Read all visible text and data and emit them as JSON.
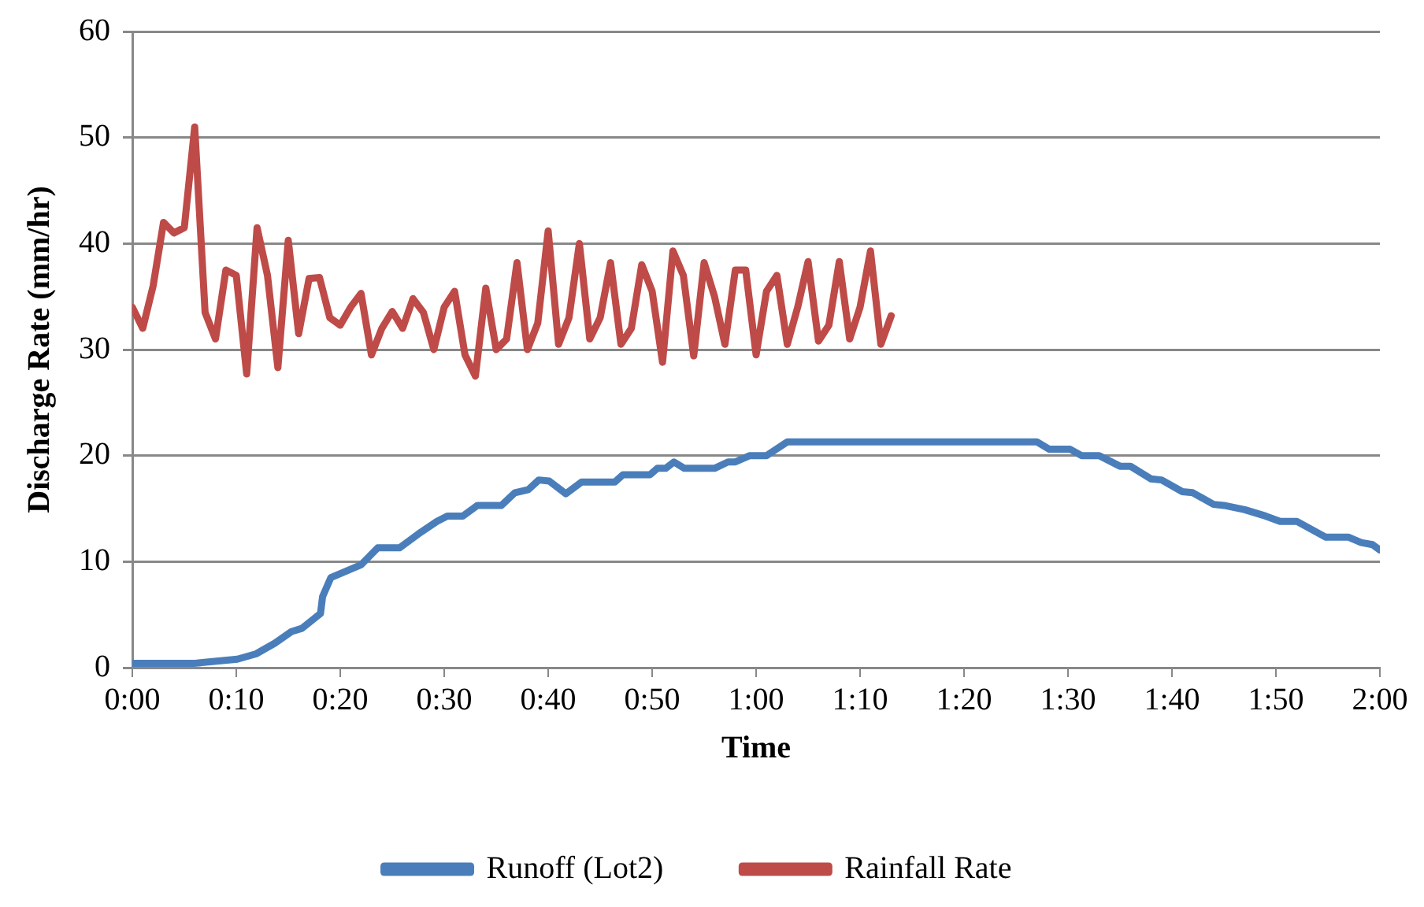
{
  "chart_data": {
    "type": "line",
    "xlabel": "Time",
    "ylabel": "Discharge Rate (mm/hr)",
    "xlim": [
      0,
      120
    ],
    "xticks": [
      {
        "value": 0,
        "label": "0:00"
      },
      {
        "value": 10,
        "label": "0:10"
      },
      {
        "value": 20,
        "label": "0:20"
      },
      {
        "value": 30,
        "label": "0:30"
      },
      {
        "value": 40,
        "label": "0:40"
      },
      {
        "value": 50,
        "label": "0:50"
      },
      {
        "value": 60,
        "label": "1:00"
      },
      {
        "value": 70,
        "label": "1:10"
      },
      {
        "value": 80,
        "label": "1:20"
      },
      {
        "value": 90,
        "label": "1:30"
      },
      {
        "value": 100,
        "label": "1:40"
      },
      {
        "value": 110,
        "label": "1:50"
      },
      {
        "value": 120,
        "label": "2:00"
      }
    ],
    "ylim": [
      0,
      60
    ],
    "yticks": [
      0,
      10,
      20,
      30,
      40,
      50,
      60
    ],
    "grid": "y",
    "legend": "bottom",
    "marker": "none",
    "line_style": "solid",
    "series": [
      {
        "name": "Runoff (Lot2)",
        "color": "#4a7ebb",
        "x": [
          0,
          5.9,
          10.1,
          11.9,
          13.7,
          15.3,
          16.3,
          18.1,
          18.3,
          19.1,
          22,
          23.6,
          25.7,
          27.5,
          29.3,
          30.3,
          31.8,
          33.2,
          35.5,
          36.8,
          38.1,
          39.1,
          40.1,
          41.7,
          43.2,
          46.4,
          47.2,
          49.8,
          50.5,
          51.3,
          52.1,
          53.1,
          56,
          57.3,
          58,
          59.4,
          61,
          63,
          87,
          88.2,
          90.2,
          91.3,
          93,
          95,
          96,
          98,
          99,
          101,
          102,
          104,
          105,
          107,
          108,
          109,
          110.4,
          112,
          114.8,
          117,
          118.2,
          119.3,
          120
        ],
        "values": [
          0.4,
          0.4,
          0.8,
          1.3,
          2.3,
          3.4,
          3.7,
          5.1,
          6.7,
          8.5,
          9.7,
          11.3,
          11.3,
          12.6,
          13.8,
          14.3,
          14.3,
          15.3,
          15.3,
          16.5,
          16.8,
          17.7,
          17.6,
          16.4,
          17.5,
          17.5,
          18.2,
          18.2,
          18.8,
          18.8,
          19.4,
          18.8,
          18.8,
          19.4,
          19.4,
          20,
          20,
          21.3,
          21.3,
          20.6,
          20.6,
          20,
          20,
          19,
          19,
          17.8,
          17.7,
          16.6,
          16.5,
          15.4,
          15.3,
          14.9,
          14.6,
          14.3,
          13.8,
          13.8,
          12.3,
          12.3,
          11.8,
          11.6,
          11.1
        ]
      },
      {
        "name": "Rainfall Rate",
        "color": "#be4b48",
        "x": [
          0,
          1,
          2,
          3,
          4,
          5,
          6,
          7,
          8,
          9,
          10,
          11,
          12,
          13,
          14,
          15,
          16,
          17,
          18,
          19,
          20,
          21,
          22,
          23,
          24,
          25,
          26,
          27,
          28,
          29,
          30,
          31,
          32,
          33,
          34,
          35,
          36,
          37,
          38,
          39,
          40,
          41,
          42,
          43,
          44,
          45,
          46,
          47,
          48,
          49,
          50,
          51,
          52,
          53,
          54,
          55,
          56,
          57,
          58,
          59,
          60,
          61,
          62,
          63,
          64,
          65,
          66,
          67,
          68,
          69,
          70,
          71,
          72,
          73
        ],
        "values": [
          34,
          32,
          36,
          42,
          41,
          41.5,
          51,
          33.5,
          31,
          37.5,
          37,
          27.7,
          41.5,
          37,
          28.3,
          40.3,
          31.5,
          36.7,
          36.8,
          33,
          32.3,
          34,
          35.3,
          29.5,
          32,
          33.6,
          32,
          34.8,
          33.5,
          30,
          34,
          35.5,
          29.5,
          27.5,
          35.8,
          30,
          31,
          38.2,
          30,
          32.5,
          41.2,
          30.5,
          33,
          40,
          31,
          33,
          38.2,
          30.5,
          32,
          38,
          35.5,
          28.8,
          39.3,
          37,
          29.4,
          38.2,
          35,
          30.5,
          37.5,
          37.5,
          29.5,
          35.5,
          37,
          30.5,
          34,
          38.3,
          30.8,
          32.3,
          38.3,
          31,
          34,
          39.3,
          30.5,
          33.2
        ]
      }
    ]
  }
}
